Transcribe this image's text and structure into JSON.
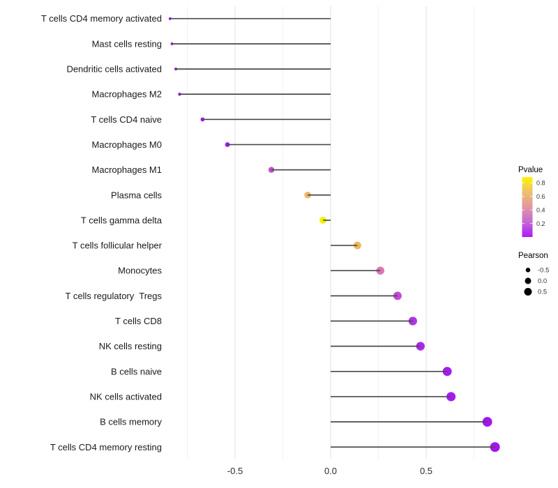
{
  "chart_data": {
    "type": "scatter",
    "variant": "lollipop",
    "title": "",
    "xlabel": "",
    "ylabel": "",
    "xlim": [
      -0.92,
      0.94
    ],
    "grid": "on",
    "x_major_ticks": [
      -0.5,
      0.0,
      0.5
    ],
    "x_major_tick_labels": [
      "-0.5",
      "0.0",
      "0.5"
    ],
    "x_minor_gridlines": [
      -0.75,
      -0.25,
      0.25,
      0.75
    ],
    "size_encoding": "Pearson",
    "color_encoding": "Pvalue",
    "points": [
      {
        "label": "T cells CD4 memory activated",
        "pearson": -0.84,
        "pvalue": 0.01,
        "color": "#9E1CE9"
      },
      {
        "label": "Mast cells resting",
        "pearson": -0.83,
        "pvalue": 0.01,
        "color": "#9E1CE9"
      },
      {
        "label": "Dendritic cells activated",
        "pearson": -0.81,
        "pvalue": 0.02,
        "color": "#A120EA"
      },
      {
        "label": "Macrophages M2",
        "pearson": -0.79,
        "pvalue": 0.02,
        "color": "#A220EC"
      },
      {
        "label": "T cells CD4 naive",
        "pearson": -0.67,
        "pvalue": 0.03,
        "color": "#A21BEB"
      },
      {
        "label": "Macrophages M0",
        "pearson": -0.54,
        "pvalue": 0.04,
        "color": "#A51DE9"
      },
      {
        "label": "Macrophages M1",
        "pearson": -0.31,
        "pvalue": 0.24,
        "color": "#BC53C6"
      },
      {
        "label": "Plasma cells",
        "pearson": -0.12,
        "pvalue": 0.62,
        "color": "#EDB566"
      },
      {
        "label": "T cells gamma delta",
        "pearson": -0.04,
        "pvalue": 0.85,
        "color": "#F2F006"
      },
      {
        "label": "T cells follicular helper",
        "pearson": 0.14,
        "pvalue": 0.6,
        "color": "#ECB660"
      },
      {
        "label": "Monocytes",
        "pearson": 0.26,
        "pvalue": 0.42,
        "color": "#D978B2"
      },
      {
        "label": "T cells regulatory  Tregs",
        "pearson": 0.35,
        "pvalue": 0.22,
        "color": "#C24BD2"
      },
      {
        "label": "T cells CD8",
        "pearson": 0.43,
        "pvalue": 0.09,
        "color": "#AE35E5"
      },
      {
        "label": "NK cells resting",
        "pearson": 0.47,
        "pvalue": 0.07,
        "color": "#AA2BE7"
      },
      {
        "label": "B cells naive",
        "pearson": 0.61,
        "pvalue": 0.03,
        "color": "#A51BEE"
      },
      {
        "label": "NK cells activated",
        "pearson": 0.63,
        "pvalue": 0.03,
        "color": "#A51BEE"
      },
      {
        "label": "B cells memory",
        "pearson": 0.82,
        "pvalue": 0.01,
        "color": "#A315F0"
      },
      {
        "label": "T cells CD4 memory resting",
        "pearson": 0.86,
        "pvalue": 0.005,
        "color": "#A315F0"
      }
    ]
  },
  "legend_pvalue": {
    "title": "Pvalue",
    "tick_labels": [
      "0.8",
      "0.6",
      "0.4",
      "0.2"
    ],
    "tick_values": [
      0.8,
      0.6,
      0.4,
      0.2
    ],
    "range": [
      0,
      0.886
    ],
    "gradient_stops": [
      "#A91BF7",
      "#C667D4",
      "#E296A3",
      "#F0BF6E",
      "#FCF500"
    ]
  },
  "legend_pearson": {
    "title": "Pearson",
    "items": [
      {
        "label": "-0.5",
        "diameter": 6.6
      },
      {
        "label": "0.0",
        "diameter": 9.0
      },
      {
        "label": "0.5",
        "diameter": 11.0
      }
    ],
    "dot_color": "#000000"
  },
  "style_colors": {
    "stem": "#4A4A4A",
    "grid_major": "#E3E3E3",
    "grid_minor": "#F1F1F1",
    "axis_text": "#2B2B2B",
    "label_text": "#1A1A1A"
  }
}
